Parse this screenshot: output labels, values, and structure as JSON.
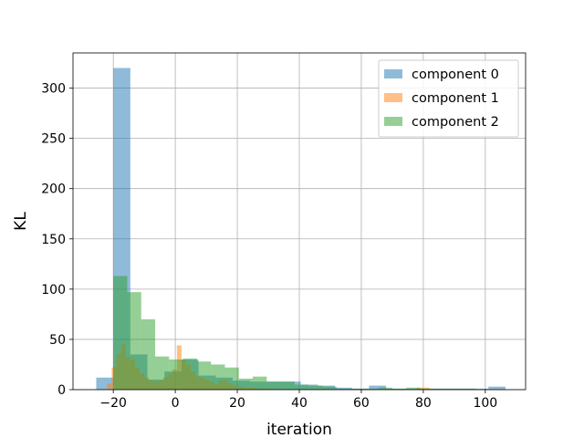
{
  "chart_data": {
    "type": "bar",
    "subtype": "overlapping-histogram",
    "xlabel": "iteration",
    "ylabel": "KL",
    "xlim": [
      -33,
      113
    ],
    "ylim": [
      0,
      335
    ],
    "xticks": [
      -20,
      0,
      20,
      40,
      60,
      80,
      100
    ],
    "yticks": [
      0,
      50,
      100,
      150,
      200,
      250,
      300
    ],
    "grid": true,
    "legend_position": "top-right",
    "bar_alpha": 0.5,
    "series": [
      {
        "name": "component 0",
        "color": "#1f77b4",
        "bins": [
          [
            -25.5,
            -20,
            12
          ],
          [
            -20,
            -14.5,
            320
          ],
          [
            -14.5,
            -9,
            35
          ],
          [
            -9,
            -3.5,
            10
          ],
          [
            -3.5,
            2,
            18
          ],
          [
            2,
            7.5,
            30
          ],
          [
            7.5,
            13,
            14
          ],
          [
            13,
            18.5,
            12
          ],
          [
            18.5,
            24,
            9
          ],
          [
            24,
            29.5,
            8
          ],
          [
            29.5,
            35,
            8
          ],
          [
            35,
            40.5,
            8
          ],
          [
            40.5,
            46,
            5
          ],
          [
            46,
            51.5,
            4
          ],
          [
            51.5,
            57,
            2
          ],
          [
            57,
            62.5,
            1
          ],
          [
            62.5,
            68,
            4
          ],
          [
            68,
            73.5,
            1
          ],
          [
            73.5,
            79,
            1
          ],
          [
            79,
            84.5,
            1
          ],
          [
            84.5,
            90,
            1
          ],
          [
            90,
            95.5,
            1
          ],
          [
            95.5,
            101,
            1
          ],
          [
            101,
            106.5,
            3
          ]
        ]
      },
      {
        "name": "component 1",
        "color": "#ff7f0e",
        "bins": [
          [
            -22,
            -20.5,
            6
          ],
          [
            -20.5,
            -19,
            22
          ],
          [
            -19,
            -17.5,
            35
          ],
          [
            -17.5,
            -16,
            45
          ],
          [
            -16,
            -14.5,
            33
          ],
          [
            -14.5,
            -13,
            30
          ],
          [
            -13,
            -11.5,
            22
          ],
          [
            -11.5,
            -10,
            16
          ],
          [
            -10,
            -8.5,
            12
          ],
          [
            -8.5,
            -7,
            9
          ],
          [
            -7,
            -5.5,
            8
          ],
          [
            -5.5,
            -4,
            9
          ],
          [
            -4,
            -2.5,
            12
          ],
          [
            -2.5,
            -1,
            15
          ],
          [
            -1,
            0.5,
            20
          ],
          [
            0.5,
            2,
            44
          ],
          [
            2,
            3.5,
            30
          ],
          [
            3.5,
            5,
            25
          ],
          [
            5,
            6.5,
            18
          ],
          [
            6.5,
            8,
            13
          ],
          [
            8,
            9.5,
            12
          ],
          [
            9.5,
            11,
            10
          ],
          [
            11,
            12.5,
            8
          ],
          [
            12.5,
            14,
            6
          ],
          [
            14,
            15.5,
            9
          ],
          [
            15.5,
            17,
            10
          ],
          [
            17,
            18.5,
            6
          ],
          [
            18.5,
            20,
            4
          ],
          [
            20,
            22,
            3
          ],
          [
            22,
            26,
            2
          ],
          [
            26,
            32,
            1
          ],
          [
            78,
            82,
            2
          ]
        ]
      },
      {
        "name": "component 2",
        "color": "#2ca02c",
        "bins": [
          [
            -20,
            -15.5,
            113
          ],
          [
            -15.5,
            -11,
            97
          ],
          [
            -11,
            -6.5,
            70
          ],
          [
            -6.5,
            -2,
            33
          ],
          [
            -2,
            2.5,
            30
          ],
          [
            2.5,
            7,
            31
          ],
          [
            7,
            11.5,
            28
          ],
          [
            11.5,
            16,
            25
          ],
          [
            16,
            20.5,
            22
          ],
          [
            20.5,
            25,
            11
          ],
          [
            25,
            29.5,
            13
          ],
          [
            29.5,
            34,
            8
          ],
          [
            34,
            38.5,
            8
          ],
          [
            38.5,
            43,
            5
          ],
          [
            43,
            47.5,
            4
          ],
          [
            47.5,
            52,
            3
          ],
          [
            52,
            56.5,
            1
          ],
          [
            56.5,
            61,
            1
          ],
          [
            61,
            65.5,
            1
          ],
          [
            65.5,
            70,
            2
          ],
          [
            70,
            74.5,
            1
          ],
          [
            74.5,
            79,
            2
          ],
          [
            79,
            83.5,
            1
          ],
          [
            83.5,
            88,
            1
          ],
          [
            88,
            92.5,
            1
          ],
          [
            92.5,
            97,
            1
          ]
        ]
      }
    ]
  }
}
